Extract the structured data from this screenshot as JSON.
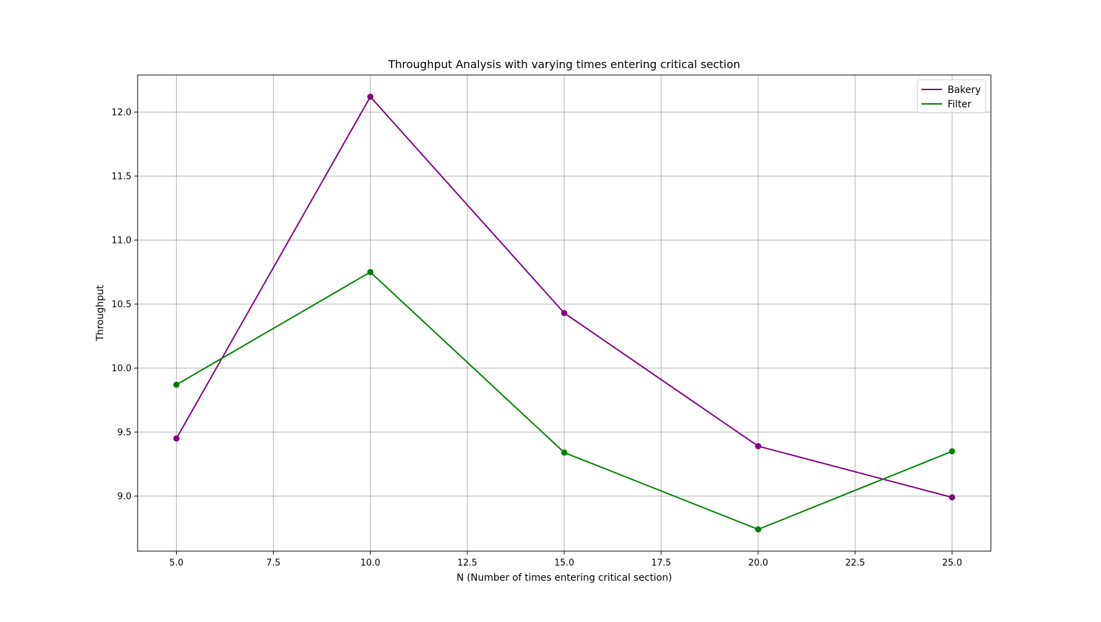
{
  "chart_data": {
    "type": "line",
    "title": "Throughput Analysis with varying times entering critical section",
    "xlabel": "N (Number of times entering critical section)",
    "ylabel": "Throughput",
    "x": [
      5,
      10,
      15,
      20,
      25
    ],
    "xlim": [
      4.0,
      26.0
    ],
    "ylim": [
      8.57,
      12.29
    ],
    "xticks": [
      5.0,
      7.5,
      10.0,
      12.5,
      15.0,
      17.5,
      20.0,
      22.5,
      25.0
    ],
    "xtick_labels": [
      "5.0",
      "7.5",
      "10.0",
      "12.5",
      "15.0",
      "17.5",
      "20.0",
      "22.5",
      "25.0"
    ],
    "yticks": [
      9.0,
      9.5,
      10.0,
      10.5,
      11.0,
      11.5,
      12.0
    ],
    "ytick_labels": [
      "9.0",
      "9.5",
      "10.0",
      "10.5",
      "11.0",
      "11.5",
      "12.0"
    ],
    "grid": true,
    "legend_position": "top-right",
    "series": [
      {
        "name": "Bakery",
        "color": "#800080",
        "values": [
          9.45,
          12.12,
          10.43,
          9.39,
          8.99
        ]
      },
      {
        "name": "Filter",
        "color": "#008000",
        "values": [
          9.87,
          10.75,
          9.34,
          8.74,
          9.35
        ]
      }
    ]
  }
}
